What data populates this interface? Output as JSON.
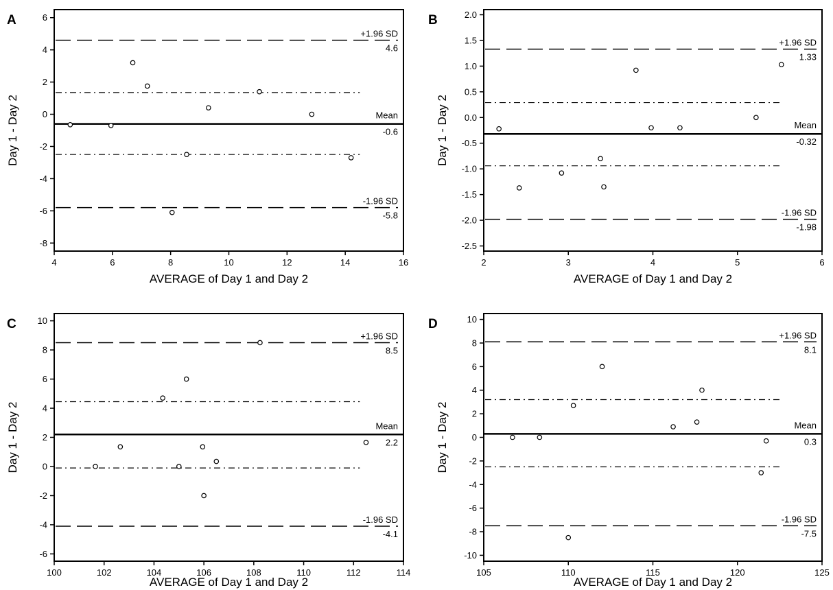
{
  "chart_data": [
    {
      "type": "scatter",
      "panel": "A",
      "xlabel": "AVERAGE of Day 1 and Day 2",
      "ylabel": "Day 1 - Day 2",
      "xlim": [
        4,
        16
      ],
      "ylim": [
        -8.5,
        6.5
      ],
      "xticks": [
        4,
        6,
        8,
        10,
        12,
        14,
        16
      ],
      "yticks": [
        -8,
        -6,
        -4,
        -2,
        0,
        2,
        4,
        6
      ],
      "points": [
        [
          4.55,
          -0.65
        ],
        [
          5.95,
          -0.7
        ],
        [
          6.7,
          3.2
        ],
        [
          7.2,
          1.75
        ],
        [
          8.05,
          -6.1
        ],
        [
          8.55,
          -2.5
        ],
        [
          9.3,
          0.4
        ],
        [
          11.05,
          1.4
        ],
        [
          12.85,
          0.0
        ],
        [
          14.2,
          -2.7
        ]
      ],
      "mean": {
        "value": -0.6,
        "label": "Mean",
        "value_label": "-0.6"
      },
      "upper_limit": {
        "value": 4.6,
        "label": "+1.96 SD",
        "value_label": "4.6"
      },
      "lower_limit": {
        "value": -5.8,
        "label": "-1.96 SD",
        "value_label": "-5.8"
      },
      "ci_lines": [
        1.35,
        -2.5
      ]
    },
    {
      "type": "scatter",
      "panel": "B",
      "xlabel": "AVERAGE of Day 1 and Day 2",
      "ylabel": "Day 1 - Day 2",
      "xlim": [
        2,
        6
      ],
      "ylim": [
        -2.6,
        2.1
      ],
      "xticks": [
        2,
        3,
        4,
        5,
        6
      ],
      "yticks": [
        -2.5,
        -2.0,
        -1.5,
        -1.0,
        -0.5,
        0.0,
        0.5,
        1.0,
        1.5,
        2.0
      ],
      "points": [
        [
          2.18,
          -0.22
        ],
        [
          2.42,
          -1.37
        ],
        [
          2.92,
          -1.08
        ],
        [
          3.38,
          -0.8
        ],
        [
          3.42,
          -1.35
        ],
        [
          3.8,
          0.92
        ],
        [
          3.98,
          -0.2
        ],
        [
          4.32,
          -0.2
        ],
        [
          5.22,
          0.0
        ],
        [
          5.52,
          1.03
        ]
      ],
      "mean": {
        "value": -0.32,
        "label": "Mean",
        "value_label": "-0.32"
      },
      "upper_limit": {
        "value": 1.33,
        "label": "+1.96 SD",
        "value_label": "1.33"
      },
      "lower_limit": {
        "value": -1.98,
        "label": "-1.96 SD",
        "value_label": "-1.98"
      },
      "ci_lines": [
        0.29,
        -0.94
      ]
    },
    {
      "type": "scatter",
      "panel": "C",
      "xlabel": "AVERAGE of Day 1 and Day 2",
      "ylabel": "Day 1 - Day 2",
      "xlim": [
        100,
        114
      ],
      "ylim": [
        -6.5,
        10.5
      ],
      "xticks": [
        100,
        102,
        104,
        106,
        108,
        110,
        112,
        114
      ],
      "yticks": [
        -6,
        -4,
        -2,
        0,
        2,
        4,
        6,
        8,
        10
      ],
      "points": [
        [
          101.65,
          0.0
        ],
        [
          102.65,
          1.35
        ],
        [
          104.35,
          4.7
        ],
        [
          105.0,
          0.0
        ],
        [
          105.3,
          6.0
        ],
        [
          105.95,
          1.35
        ],
        [
          106.0,
          -2.0
        ],
        [
          106.5,
          0.35
        ],
        [
          108.25,
          8.5
        ],
        [
          112.5,
          1.65
        ]
      ],
      "mean": {
        "value": 2.2,
        "label": "Mean",
        "value_label": "2.2"
      },
      "upper_limit": {
        "value": 8.5,
        "label": "+1.96 SD",
        "value_label": "8.5"
      },
      "lower_limit": {
        "value": -4.1,
        "label": "-1.96 SD",
        "value_label": "-4.1"
      },
      "ci_lines": [
        4.45,
        -0.1
      ]
    },
    {
      "type": "scatter",
      "panel": "D",
      "xlabel": "AVERAGE of Day 1 and Day 2",
      "ylabel": "Day 1 - Day 2",
      "xlim": [
        105,
        125
      ],
      "ylim": [
        -10.5,
        10.5
      ],
      "xticks": [
        105,
        110,
        115,
        120,
        125
      ],
      "yticks": [
        -10,
        -8,
        -6,
        -4,
        -2,
        0,
        2,
        4,
        6,
        8,
        10
      ],
      "points": [
        [
          106.7,
          0.0
        ],
        [
          108.3,
          0.0
        ],
        [
          110.0,
          -8.5
        ],
        [
          110.3,
          2.7
        ],
        [
          112.0,
          6.0
        ],
        [
          116.2,
          0.9
        ],
        [
          117.6,
          1.3
        ],
        [
          117.9,
          4.0
        ],
        [
          121.4,
          -3.0
        ],
        [
          121.7,
          -0.3
        ]
      ],
      "mean": {
        "value": 0.3,
        "label": "Mean",
        "value_label": "0.3"
      },
      "upper_limit": {
        "value": 8.1,
        "label": "+1.96 SD",
        "value_label": "8.1"
      },
      "lower_limit": {
        "value": -7.5,
        "label": "-1.96 SD",
        "value_label": "-7.5"
      },
      "ci_lines": [
        3.2,
        -2.5
      ]
    }
  ]
}
